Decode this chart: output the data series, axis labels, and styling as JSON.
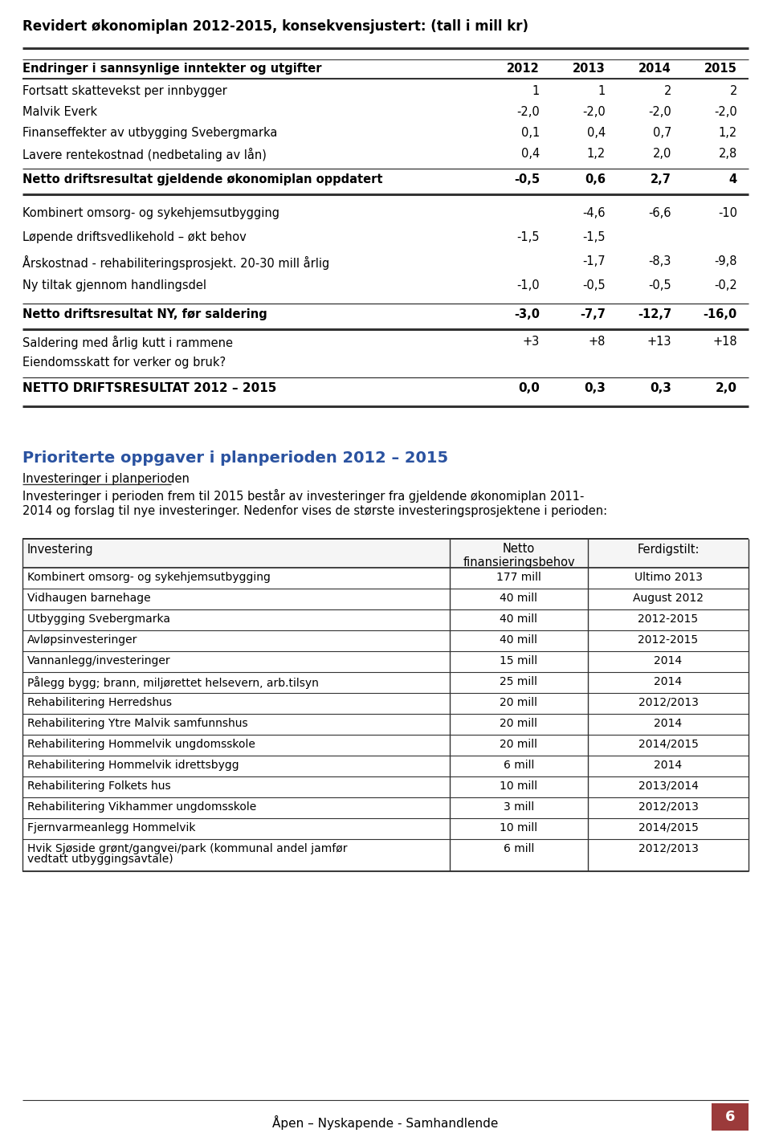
{
  "title": "Revidert økonomiplan 2012-2015, konsekvensjustert: (tall i mill kr)",
  "table1_header": [
    "Endringer i sannsynlige inntekter og utgifter",
    "2012",
    "2013",
    "2014",
    "2015"
  ],
  "table1_rows": [
    [
      "Fortsatt skattevekst per innbygger",
      "1",
      "1",
      "2",
      "2"
    ],
    [
      "Malvik Everk",
      "-2,0",
      "-2,0",
      "-2,0",
      "-2,0"
    ],
    [
      "Finanseffekter av utbygging Svebergmarka",
      "0,1",
      "0,4",
      "0,7",
      "1,2"
    ],
    [
      "Lavere rentekostnad (nedbetaling av lån)",
      "0,4",
      "1,2",
      "2,0",
      "2,8"
    ]
  ],
  "table1_bold_row1": [
    "Netto driftsresultat gjeldende økonomiplan oppdatert",
    "-0,5",
    "0,6",
    "2,7",
    "4"
  ],
  "table1_rows2": [
    [
      "Kombinert omsorg- og sykehjemsutbygging",
      "",
      "-4,6",
      "-6,6",
      "-10"
    ],
    [
      "Løpende driftsvedlikehold – økt behov",
      "-1,5",
      "-1,5",
      "",
      ""
    ],
    [
      "Årskostnad - rehabiliteringsprosjekt. 20-30 mill årlig",
      "",
      "-1,7",
      "-8,3",
      "-9,8"
    ],
    [
      "Ny tiltak gjennom handlingsdel",
      "-1,0",
      "-0,5",
      "-0,5",
      "-0,2"
    ]
  ],
  "table1_bold_row2": [
    "Netto driftsresultat NY, før saldering",
    "-3,0",
    "-7,7",
    "-12,7",
    "-16,0"
  ],
  "table1_rows3": [
    [
      "Saldering med årlig kutt i rammene",
      "+3",
      "+8",
      "+13",
      "+18"
    ],
    [
      "Eiendomsskatt for verker og bruk?",
      "",
      "",
      "",
      ""
    ]
  ],
  "table1_bold_row3": [
    "NETTO DRIFTSRESULTAT 2012 – 2015",
    "0,0",
    "0,3",
    "0,3",
    "2,0"
  ],
  "section2_title": "Prioriterte oppgaver i planperioden 2012 – 2015",
  "section2_subtitle": "Investeringer i planperioden",
  "section2_text1": "Investeringer i perioden frem til 2015 består av investeringer fra gjeldende økonomiplan 2011-",
  "section2_text2": "2014 og forslag til nye investeringer. Nedenfor vises de største investeringsprosjektene i perioden:",
  "table2_col0_header": "Investering",
  "table2_col1_header": "Netto\nfinansieringsbehov",
  "table2_col2_header": "Ferdigstilt:",
  "table2_rows": [
    [
      "Kombinert omsorg- og sykehjemsutbygging",
      "177 mill",
      "Ultimo 2013"
    ],
    [
      "Vidhaugen barnehage",
      "40 mill",
      "August 2012"
    ],
    [
      "Utbygging Svebergmarka",
      "40 mill",
      "2012-2015"
    ],
    [
      "Avløpsinvesteringer",
      "40 mill",
      "2012-2015"
    ],
    [
      "Vannanlegg/investeringer",
      "15 mill",
      "2014"
    ],
    [
      "Pålegg bygg; brann, miljørettet helsevern, arb.tilsyn",
      "25 mill",
      "2014"
    ],
    [
      "Rehabilitering Herredshus",
      "20 mill",
      "2012/2013"
    ],
    [
      "Rehabilitering Ytre Malvik samfunnshus",
      "20 mill",
      "2014"
    ],
    [
      "Rehabilitering Hommelvik ungdomsskole",
      "20 mill",
      "2014/2015"
    ],
    [
      "Rehabilitering Hommelvik idrettsbygg",
      "6 mill",
      "2014"
    ],
    [
      "Rehabilitering Folkets hus",
      "10 mill",
      "2013/2014"
    ],
    [
      "Rehabilitering Vikhammer ungdomsskole",
      "3 mill",
      "2012/2013"
    ],
    [
      "Fjernvarmeanlegg Hommelvik",
      "10 mill",
      "2014/2015"
    ],
    [
      "Hvik Sjøside grønt/gangvei/park (kommunal andel jamfør\nvedtatt utbyggingsavtale)",
      "6 mill",
      "2012/2013"
    ]
  ],
  "footer_text": "Åpen – Nyskapende - Samhandlende",
  "footer_page": "6",
  "footer_box_color": "#9b3a3a",
  "title_color": "#000000",
  "section2_title_color": "#2a52a0",
  "bg_color": "#ffffff",
  "line_color": "#333333"
}
